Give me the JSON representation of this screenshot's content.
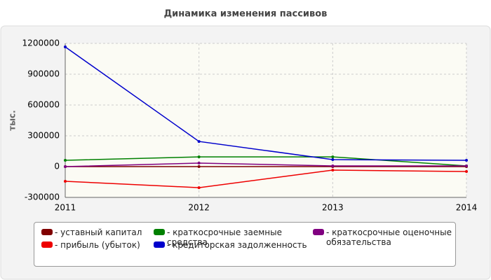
{
  "chart_data": {
    "type": "line",
    "title": "Динамика изменения пассивов",
    "y_label": "тыс.",
    "x": [
      2011,
      2012,
      2013,
      2014
    ],
    "xlim": [
      2011,
      2014
    ],
    "xticks": [
      2011,
      2012,
      2013,
      2014
    ],
    "ylim": [
      -300000,
      1200000
    ],
    "yticks": [
      -300000,
      0,
      300000,
      600000,
      900000,
      1200000
    ],
    "grid": true,
    "series": [
      {
        "name": "- уставный капитал",
        "color": "#800000",
        "values": [
          0,
          0,
          0,
          0
        ]
      },
      {
        "name": "- прибыль (убыток)",
        "color": "#ee0000",
        "values": [
          -143000,
          -205000,
          -34000,
          -48000
        ]
      },
      {
        "name": "- краткосрочные заемные средства",
        "color": "#008000",
        "values": [
          61000,
          95000,
          95000,
          7000
        ]
      },
      {
        "name": "- кредиторская задолженность",
        "color": "#0000cc",
        "values": [
          1166000,
          245000,
          68000,
          61000
        ]
      },
      {
        "name": "- краткосрочные оценочные обязательства",
        "color": "#800080",
        "values": [
          0,
          34000,
          7000,
          7000
        ]
      }
    ]
  }
}
